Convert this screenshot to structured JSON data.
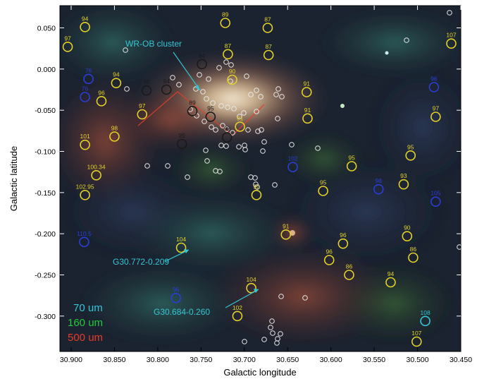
{
  "axes": {
    "xlabel": "Galactic longitude",
    "ylabel": "Galactic latitude",
    "x_ticks": [
      "30.900",
      "30.850",
      "30.800",
      "30.750",
      "30.700",
      "30.650",
      "30.600",
      "30.550",
      "30.500",
      "30.450"
    ],
    "y_ticks": [
      "0.050",
      "0.000",
      "-0.050",
      "-0.100",
      "-0.150",
      "-0.200",
      "-0.250",
      "-0.300"
    ],
    "xlim": [
      30.913,
      30.45
    ],
    "ylim": [
      -0.343,
      0.077
    ]
  },
  "legend": [
    {
      "text": "70 um",
      "color": "#35c6d6"
    },
    {
      "text": "160 um",
      "color": "#22c93a"
    },
    {
      "text": "500 um",
      "color": "#e63a2a"
    }
  ],
  "annotations": [
    {
      "text": "WR-OB cluster",
      "color": "#35c6d6"
    },
    {
      "text": "G30.772-0.209",
      "color": "#35c6d6"
    },
    {
      "text": "G30.684-0.260",
      "color": "#35c6d6"
    }
  ],
  "markers": [
    {
      "l": 30.884,
      "b": 0.051,
      "label": "94",
      "color": "#e3d12a"
    },
    {
      "l": 30.904,
      "b": 0.027,
      "label": "97",
      "color": "#e3d12a"
    },
    {
      "l": 30.722,
      "b": 0.056,
      "label": "89",
      "color": "#e3d12a"
    },
    {
      "l": 30.673,
      "b": 0.05,
      "label": "87",
      "color": "#e3d12a"
    },
    {
      "l": 30.461,
      "b": 0.031,
      "label": "107",
      "color": "#e3d12a"
    },
    {
      "l": 30.719,
      "b": 0.018,
      "label": "87",
      "color": "#e3d12a"
    },
    {
      "l": 30.672,
      "b": 0.017,
      "label": "87",
      "color": "#e3d12a"
    },
    {
      "l": 30.749,
      "b": 0.006,
      "label": "94",
      "color": "#1a1a1a"
    },
    {
      "l": 30.714,
      "b": -0.013,
      "label": "90",
      "color": "#e3d12a"
    },
    {
      "l": 30.88,
      "b": -0.012,
      "label": "76",
      "color": "#2b3dd6"
    },
    {
      "l": 30.884,
      "b": -0.034,
      "label": "76",
      "color": "#2b3dd6"
    },
    {
      "l": 30.848,
      "b": -0.017,
      "label": "94",
      "color": "#e3d12a"
    },
    {
      "l": 30.865,
      "b": -0.039,
      "label": "96",
      "color": "#e3d12a"
    },
    {
      "l": 30.813,
      "b": -0.026,
      "label": "95",
      "color": "#1a1a1a"
    },
    {
      "l": 30.79,
      "b": -0.025,
      "label": "94",
      "color": "#1a1a1a"
    },
    {
      "l": 30.818,
      "b": -0.055,
      "label": "97",
      "color": "#e3d12a"
    },
    {
      "l": 30.76,
      "b": -0.051,
      "label": "89",
      "color": "#1a1a1a"
    },
    {
      "l": 30.739,
      "b": -0.058,
      "label": "95",
      "color": "#1a1a1a"
    },
    {
      "l": 30.705,
      "b": -0.07,
      "label": "91",
      "color": "#e3d12a"
    },
    {
      "l": 30.72,
      "b": -0.083,
      "label": "93",
      "color": "#1a1a1a"
    },
    {
      "l": 30.628,
      "b": -0.028,
      "label": "91",
      "color": "#e3d12a"
    },
    {
      "l": 30.627,
      "b": -0.06,
      "label": "91",
      "color": "#e3d12a"
    },
    {
      "l": 30.481,
      "b": -0.022,
      "label": "96",
      "color": "#2b3dd6"
    },
    {
      "l": 30.479,
      "b": -0.058,
      "label": "97",
      "color": "#e3d12a"
    },
    {
      "l": 30.85,
      "b": -0.082,
      "label": "98",
      "color": "#e3d12a"
    },
    {
      "l": 30.884,
      "b": -0.092,
      "label": "101",
      "color": "#e3d12a"
    },
    {
      "l": 30.772,
      "b": -0.091,
      "label": "95",
      "color": "#1a1a1a"
    },
    {
      "l": 30.871,
      "b": -0.129,
      "label": "100.34",
      "color": "#e3d12a"
    },
    {
      "l": 30.884,
      "b": -0.153,
      "label": "102.95",
      "color": "#e3d12a"
    },
    {
      "l": 30.644,
      "b": -0.119,
      "label": "102",
      "color": "#2b3dd6"
    },
    {
      "l": 30.576,
      "b": -0.118,
      "label": "95",
      "color": "#e3d12a"
    },
    {
      "l": 30.508,
      "b": -0.105,
      "label": "95",
      "color": "#e3d12a"
    },
    {
      "l": 30.686,
      "b": -0.153,
      "label": "92",
      "color": "#e3d12a"
    },
    {
      "l": 30.609,
      "b": -0.148,
      "label": "95",
      "color": "#e3d12a"
    },
    {
      "l": 30.545,
      "b": -0.146,
      "label": "98",
      "color": "#2b3dd6"
    },
    {
      "l": 30.516,
      "b": -0.14,
      "label": "93",
      "color": "#e3d12a"
    },
    {
      "l": 30.479,
      "b": -0.161,
      "label": "105",
      "color": "#2b3dd6"
    },
    {
      "l": 30.885,
      "b": -0.21,
      "label": "110.5",
      "color": "#2b3dd6"
    },
    {
      "l": 30.773,
      "b": -0.217,
      "label": "104",
      "color": "#e3d12a"
    },
    {
      "l": 30.652,
      "b": -0.201,
      "label": "91",
      "color": "#e3d12a"
    },
    {
      "l": 30.586,
      "b": -0.212,
      "label": "96",
      "color": "#e3d12a"
    },
    {
      "l": 30.512,
      "b": -0.203,
      "label": "90",
      "color": "#e3d12a"
    },
    {
      "l": 30.602,
      "b": -0.232,
      "label": "96",
      "color": "#e3d12a"
    },
    {
      "l": 30.579,
      "b": -0.25,
      "label": "86",
      "color": "#e3d12a"
    },
    {
      "l": 30.505,
      "b": -0.229,
      "label": "86",
      "color": "#e3d12a"
    },
    {
      "l": 30.531,
      "b": -0.259,
      "label": "94",
      "color": "#e3d12a"
    },
    {
      "l": 30.692,
      "b": -0.266,
      "label": "104",
      "color": "#e3d12a"
    },
    {
      "l": 30.708,
      "b": -0.3,
      "label": "102",
      "color": "#e3d12a"
    },
    {
      "l": 30.779,
      "b": -0.278,
      "label": "96",
      "color": "#2b3dd6"
    },
    {
      "l": 30.491,
      "b": -0.306,
      "label": "108",
      "color": "#35c6d6"
    },
    {
      "l": 30.501,
      "b": -0.331,
      "label": "107",
      "color": "#e3d12a"
    }
  ],
  "yso_count_note": ""
}
